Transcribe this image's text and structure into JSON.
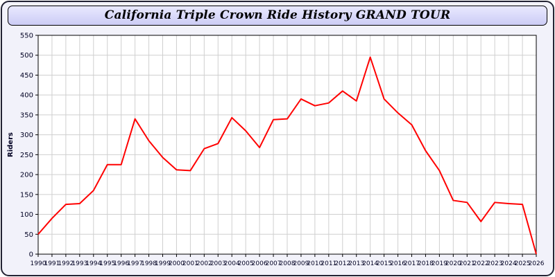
{
  "title": "California Triple Crown Ride History GRAND TOUR",
  "colors": {
    "line": "#ff0000",
    "title_bar": "#ccccf5",
    "grid": "#cfcfcf",
    "axis_text": "#000022",
    "plot_border": "#000000",
    "panel_bg": "#f2f2fa"
  },
  "chart_data": {
    "type": "line",
    "title": "California Triple Crown Ride History GRAND TOUR",
    "xlabel": "",
    "ylabel": "Riders",
    "ylim": [
      0,
      550
    ],
    "ytick_step": 50,
    "grid": true,
    "legend": "none",
    "x": [
      1990,
      1991,
      1992,
      1993,
      1994,
      1995,
      1996,
      1997,
      1998,
      1999,
      2000,
      2001,
      2002,
      2003,
      2004,
      2005,
      2006,
      2007,
      2008,
      2009,
      2010,
      2011,
      2012,
      2013,
      2014,
      2015,
      2016,
      2017,
      2018,
      2019,
      2020,
      2021,
      2022,
      2023,
      2024,
      2025,
      2026
    ],
    "values": [
      50,
      90,
      125,
      127,
      160,
      225,
      225,
      340,
      285,
      243,
      212,
      210,
      265,
      278,
      343,
      310,
      268,
      338,
      340,
      390,
      373,
      380,
      410,
      385,
      495,
      390,
      355,
      325,
      260,
      210,
      135,
      130,
      82,
      130,
      127,
      125,
      0
    ]
  }
}
